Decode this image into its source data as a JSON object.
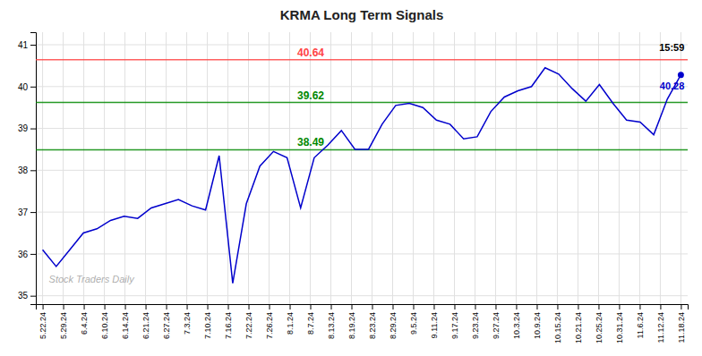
{
  "chart_data": {
    "type": "line",
    "title": "KRMA Long Term Signals",
    "x": [
      0,
      1,
      2,
      3,
      4,
      5,
      6,
      7,
      8,
      9,
      10,
      11,
      12,
      13,
      14,
      15,
      16,
      17,
      18,
      19,
      20,
      21,
      22,
      23,
      24,
      25,
      26,
      27,
      28,
      29,
      30,
      31,
      32,
      33,
      34,
      35,
      36,
      37,
      38,
      39,
      40,
      41,
      42,
      43,
      44,
      45,
      46,
      47
    ],
    "values": [
      36.1,
      35.7,
      36.1,
      36.5,
      36.6,
      36.8,
      36.9,
      36.85,
      37.1,
      37.2,
      37.3,
      37.15,
      37.05,
      38.35,
      35.3,
      37.2,
      38.1,
      38.45,
      38.3,
      37.1,
      38.3,
      38.6,
      38.95,
      38.5,
      38.5,
      39.1,
      39.55,
      39.6,
      39.5,
      39.2,
      39.1,
      38.75,
      38.8,
      39.4,
      39.75,
      39.9,
      40.0,
      40.45,
      40.3,
      39.95,
      39.65,
      40.05,
      39.6,
      39.2,
      39.15,
      38.85,
      39.7,
      40.28
    ],
    "color": "#0000cc",
    "xlim": [
      -0.5,
      47.5
    ],
    "xticks": [
      {
        "value": 0,
        "label": "5.22.24"
      },
      {
        "value": 1.516129,
        "label": "5.29.24"
      },
      {
        "value": 3.032258,
        "label": "6.4.24"
      },
      {
        "value": 4.548387,
        "label": "6.10.24"
      },
      {
        "value": 6.064516,
        "label": "6.14.24"
      },
      {
        "value": 7.580645,
        "label": "6.21.24"
      },
      {
        "value": 9.096774,
        "label": "6.27.24"
      },
      {
        "value": 10.612903,
        "label": "7.3.24"
      },
      {
        "value": 12.129032,
        "label": "7.10.24"
      },
      {
        "value": 13.645161,
        "label": "7.16.24"
      },
      {
        "value": 15.16129,
        "label": "7.22.24"
      },
      {
        "value": 16.677419,
        "label": "7.26.24"
      },
      {
        "value": 18.193548,
        "label": "8.1.24"
      },
      {
        "value": 19.709677,
        "label": "8.7.24"
      },
      {
        "value": 21.225806,
        "label": "8.13.24"
      },
      {
        "value": 22.741935,
        "label": "8.19.24"
      },
      {
        "value": 24.258065,
        "label": "8.23.24"
      },
      {
        "value": 25.774194,
        "label": "8.29.24"
      },
      {
        "value": 27.290323,
        "label": "9.5.24"
      },
      {
        "value": 28.806452,
        "label": "9.11.24"
      },
      {
        "value": 30.322581,
        "label": "9.17.24"
      },
      {
        "value": 31.83871,
        "label": "9.23.24"
      },
      {
        "value": 33.354839,
        "label": "9.27.24"
      },
      {
        "value": 34.870968,
        "label": "10.3.24"
      },
      {
        "value": 36.387097,
        "label": "10.9.24"
      },
      {
        "value": 37.903226,
        "label": "10.15.24"
      },
      {
        "value": 39.419355,
        "label": "10.21.24"
      },
      {
        "value": 40.935484,
        "label": "10.25.24"
      },
      {
        "value": 42.451613,
        "label": "10.31.24"
      },
      {
        "value": 43.967742,
        "label": "11.6.24"
      },
      {
        "value": 45.483871,
        "label": "11.12.24"
      },
      {
        "value": 47,
        "label": "11.18.24"
      }
    ],
    "ylim": [
      34.8,
      41.3
    ],
    "yticks": [
      35,
      36,
      37,
      38,
      39,
      40,
      41
    ],
    "grid": true,
    "reference_lines": [
      {
        "value": 40.64,
        "label": "40.64",
        "color": "#ff4444"
      },
      {
        "value": 39.62,
        "label": "39.62",
        "color": "#008800"
      },
      {
        "value": 38.49,
        "label": "38.49",
        "color": "#008800"
      }
    ],
    "last_time": "15:59",
    "last_price": 40.28,
    "watermark": {
      "text": "Stock Traders Daily",
      "color": "#888888"
    }
  }
}
